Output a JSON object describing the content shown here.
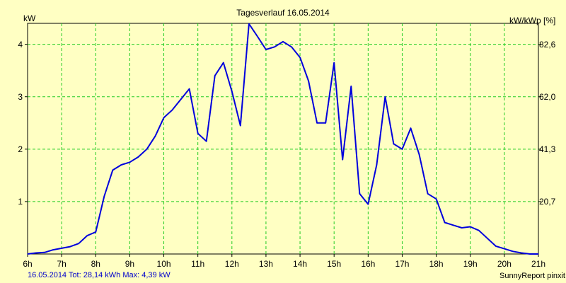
{
  "chart_data": {
    "type": "line",
    "title": "Tagesverlauf 16.05.2014",
    "ylabel": "kW",
    "ylabel_right": "kW/kWp [%]",
    "xlim": [
      6,
      21
    ],
    "ylim": [
      0,
      4.4
    ],
    "grid": true,
    "x_ticks": [
      "6h",
      "7h",
      "8h",
      "9h",
      "10h",
      "11h",
      "12h",
      "13h",
      "14h",
      "15h",
      "16h",
      "17h",
      "18h",
      "19h",
      "20h",
      "21h"
    ],
    "y_ticks_left": [
      "1",
      "2",
      "3",
      "4"
    ],
    "y_ticks_left_values": [
      1,
      2,
      3,
      4
    ],
    "y_ticks_right": [
      "20,7",
      "41,3",
      "62,0",
      "82,6"
    ],
    "line_color": "#0000dd",
    "grid_color": "#22cc22",
    "background_color": "#ffffc3",
    "x": [
      6.0,
      6.25,
      6.5,
      6.75,
      7.0,
      7.25,
      7.5,
      7.75,
      8.0,
      8.25,
      8.5,
      8.75,
      9.0,
      9.25,
      9.5,
      9.75,
      10.0,
      10.25,
      10.5,
      10.75,
      11.0,
      11.25,
      11.5,
      11.75,
      12.0,
      12.25,
      12.5,
      12.75,
      13.0,
      13.25,
      13.5,
      13.75,
      14.0,
      14.25,
      14.5,
      14.75,
      15.0,
      15.25,
      15.5,
      15.75,
      16.0,
      16.25,
      16.5,
      16.75,
      17.0,
      17.25,
      17.5,
      17.75,
      18.0,
      18.25,
      18.5,
      18.75,
      19.0,
      19.25,
      19.5,
      19.75,
      20.0,
      20.25,
      20.5,
      20.75,
      21.0
    ],
    "values": [
      0.0,
      0.02,
      0.03,
      0.08,
      0.11,
      0.14,
      0.2,
      0.35,
      0.42,
      1.1,
      1.6,
      1.7,
      1.75,
      1.85,
      2.0,
      2.25,
      2.6,
      2.75,
      2.95,
      3.15,
      2.3,
      2.15,
      3.4,
      3.65,
      3.1,
      2.45,
      4.39,
      4.15,
      3.9,
      3.95,
      4.05,
      3.95,
      3.75,
      3.3,
      2.5,
      2.5,
      3.65,
      1.8,
      3.2,
      1.15,
      0.95,
      1.7,
      3.0,
      2.1,
      2.0,
      2.4,
      1.9,
      1.15,
      1.05,
      0.6,
      0.55,
      0.5,
      0.52,
      0.45,
      0.3,
      0.15,
      0.1,
      0.05,
      0.02,
      0.0,
      0.0
    ]
  },
  "footer": {
    "summary": "16.05.2014 Tot: 28,14 kWh Max: 4,39 kW",
    "brand": "SunnyReport pinxit"
  }
}
